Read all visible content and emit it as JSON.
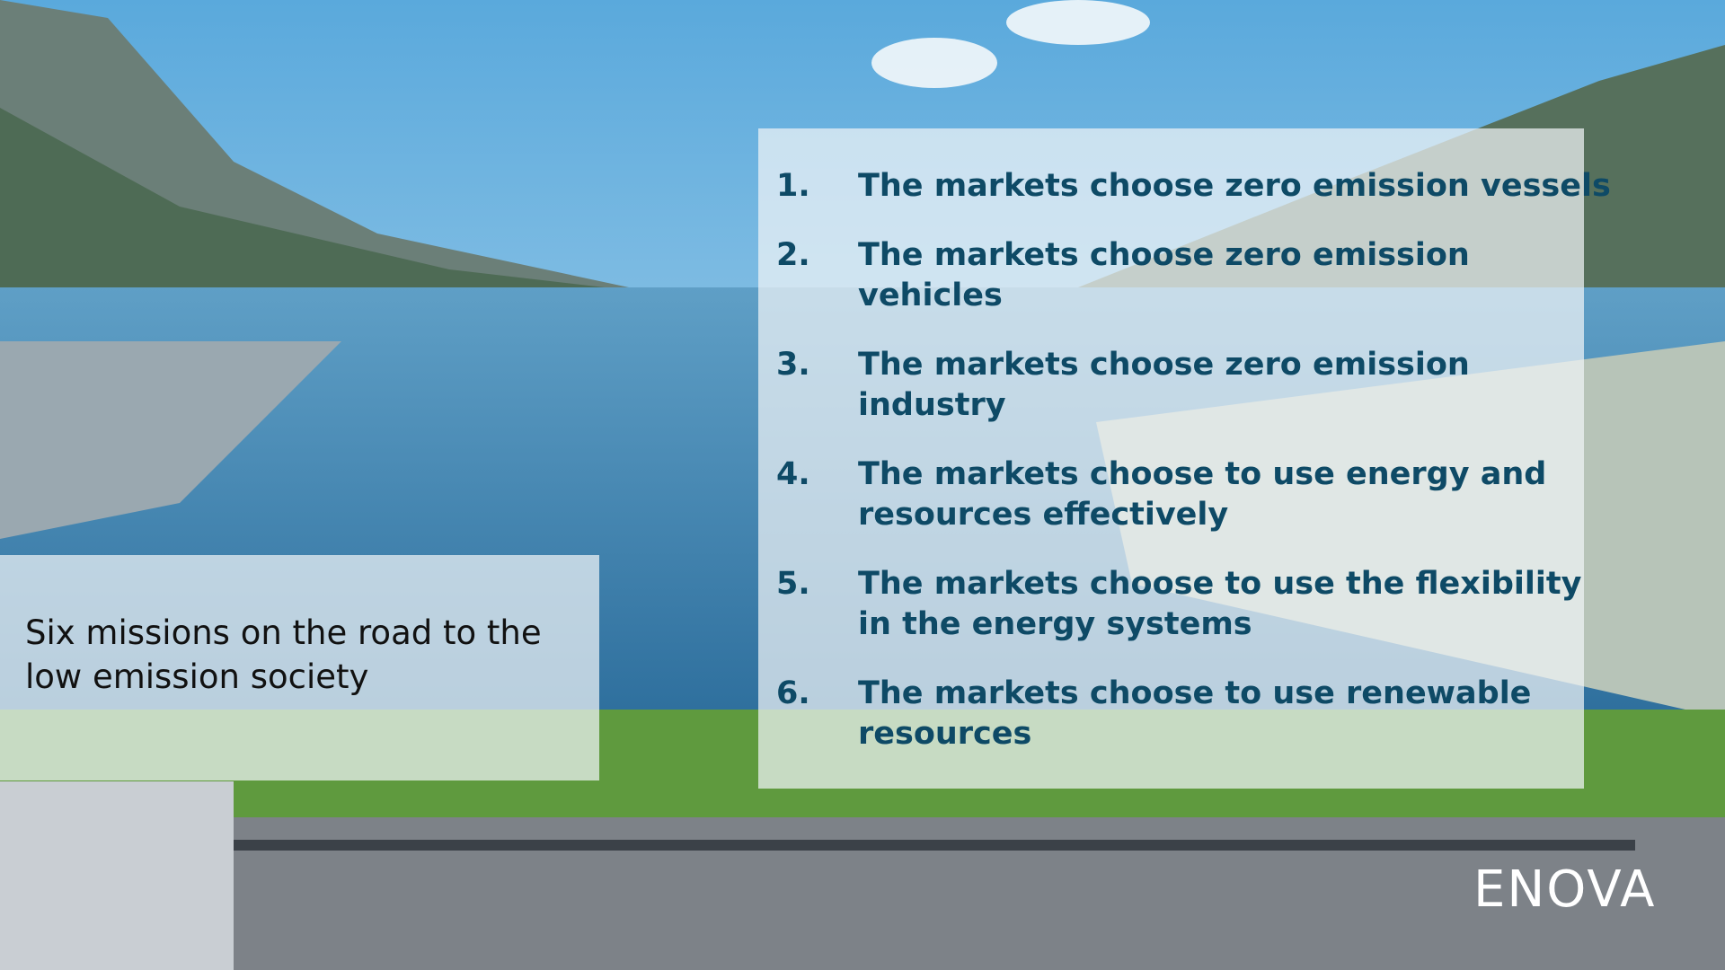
{
  "caption": {
    "lines": [
      "Six missions on the road to the",
      "low emission society"
    ]
  },
  "missions": [
    {
      "number": "1.",
      "lines": [
        "The markets choose zero emission vessels"
      ]
    },
    {
      "number": "2.",
      "lines": [
        "The markets choose zero emission",
        "vehicles"
      ]
    },
    {
      "number": "3.",
      "lines": [
        "The markets choose zero emission",
        "industry"
      ]
    },
    {
      "number": "4.",
      "lines": [
        "The markets choose to use energy and",
        "resources effectively"
      ]
    },
    {
      "number": "5.",
      "lines": [
        "The markets choose to use the flexibility",
        "in the energy systems"
      ]
    },
    {
      "number": "6.",
      "lines": [
        "The markets choose to use renewable",
        "resources"
      ]
    }
  ],
  "logo": "ENOVA"
}
